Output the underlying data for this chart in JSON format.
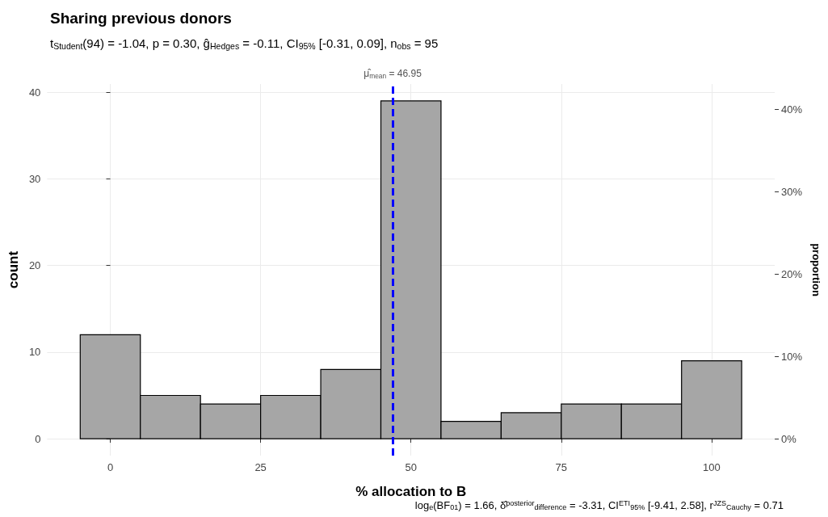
{
  "chart_data": {
    "type": "histogram",
    "title": "Sharing previous donors",
    "subtitle": "t$_{Student}$(94) = -1.04, p = 0.30, ĝ$_{Hedges}$ = -0.11, CI$_{95%}$ [-0.31, 0.09], n$_{obs}$ = 95",
    "xlabel": "% allocation to B",
    "ylabel": "count",
    "y2label": "proportion",
    "bins": [
      -5,
      5,
      15,
      25,
      35,
      45,
      55,
      65,
      75,
      85,
      95,
      105
    ],
    "values": [
      12,
      5,
      4,
      5,
      8,
      39,
      2,
      3,
      4,
      4,
      9
    ],
    "color": "#a6a6a6",
    "xlim": [
      -10.5,
      110.5
    ],
    "xticks": [
      0,
      25,
      50,
      75,
      100
    ],
    "ylim": [
      -1.95,
      40.95
    ],
    "yticks": [
      0,
      10,
      20,
      30,
      40
    ],
    "y2lim": [
      -2.05,
      43.1
    ],
    "y2ticks": [
      {
        "value": 0,
        "label": "0%"
      },
      {
        "value": 10,
        "label": "10%"
      },
      {
        "value": 20,
        "label": "20%"
      },
      {
        "value": 30,
        "label": "30%"
      },
      {
        "value": 40,
        "label": "40%"
      }
    ],
    "ref_lines": [
      {
        "axis": "x",
        "value": 46.95,
        "label": "μ̂$_{mean}$ = 46.95",
        "color": "#0000ff",
        "line_style": "dashed"
      }
    ],
    "annotations": [
      "log$_{e}$(BF$_{01}$) = 1.66, δ̂$^{posterior}$$_{difference}$ = -3.31, CI$^{ETI}$$_{95%}$ [-9.41, 2.58], r$^{JZS}$$_{Cauchy}$ = 0.71"
    ],
    "grid": true
  }
}
